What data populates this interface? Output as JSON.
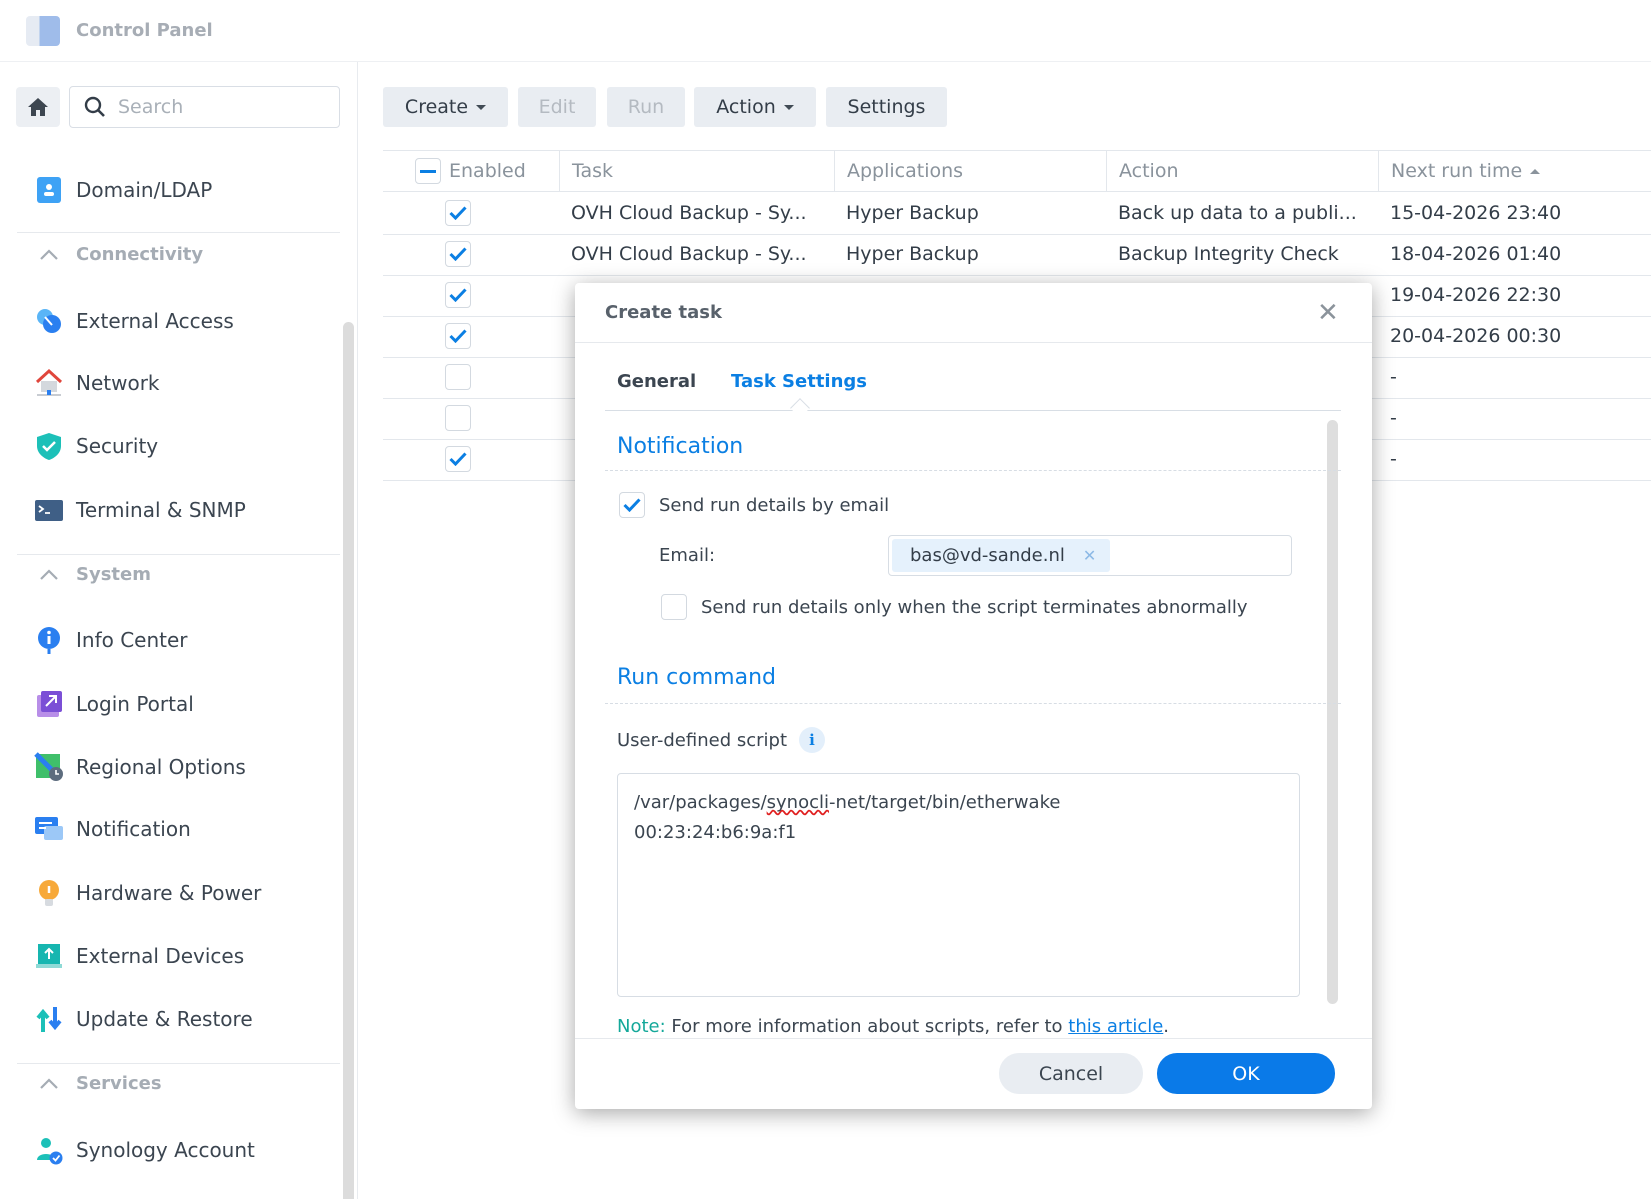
{
  "window": {
    "title": "Control Panel"
  },
  "sidebar": {
    "search_placeholder": "Search",
    "entries": [
      {
        "type": "item",
        "label": "Domain/LDAP",
        "icon": "domain-ldap-icon"
      },
      {
        "type": "sep"
      },
      {
        "type": "section",
        "label": "Connectivity"
      },
      {
        "type": "item",
        "label": "External Access",
        "icon": "external-access-icon"
      },
      {
        "type": "item",
        "label": "Network",
        "icon": "network-icon"
      },
      {
        "type": "item",
        "label": "Security",
        "icon": "security-shield-icon"
      },
      {
        "type": "item",
        "label": "Terminal & SNMP",
        "icon": "terminal-icon"
      },
      {
        "type": "sep"
      },
      {
        "type": "section",
        "label": "System"
      },
      {
        "type": "item",
        "label": "Info Center",
        "icon": "info-center-icon"
      },
      {
        "type": "item",
        "label": "Login Portal",
        "icon": "login-portal-icon"
      },
      {
        "type": "item",
        "label": "Regional Options",
        "icon": "regional-options-icon"
      },
      {
        "type": "item",
        "label": "Notification",
        "icon": "notification-icon"
      },
      {
        "type": "item",
        "label": "Hardware & Power",
        "icon": "hardware-power-icon"
      },
      {
        "type": "item",
        "label": "External Devices",
        "icon": "external-devices-icon"
      },
      {
        "type": "item",
        "label": "Update & Restore",
        "icon": "update-restore-icon"
      },
      {
        "type": "sep"
      },
      {
        "type": "section",
        "label": "Services"
      },
      {
        "type": "item",
        "label": "Synology Account",
        "icon": "synology-account-icon"
      }
    ]
  },
  "toolbar": {
    "create": "Create",
    "edit": "Edit",
    "run": "Run",
    "action": "Action",
    "settings": "Settings"
  },
  "table": {
    "columns": [
      "Enabled",
      "Task",
      "Applications",
      "Action",
      "Next run time"
    ],
    "sort": "Next run time ascending",
    "rows": [
      {
        "enabled": true,
        "task": "OVH Cloud Backup - Sy...",
        "app": "Hyper Backup",
        "action": "Back up data to a publi...",
        "next": "15-04-2026 23:40"
      },
      {
        "enabled": true,
        "task": "OVH Cloud Backup - Sy...",
        "app": "Hyper Backup",
        "action": "Backup Integrity Check",
        "next": "18-04-2026 01:40"
      },
      {
        "enabled": true,
        "task": "",
        "app": "",
        "action": "",
        "next": "19-04-2026 22:30"
      },
      {
        "enabled": true,
        "task": "",
        "app": "",
        "action": "",
        "next": "20-04-2026 00:30"
      },
      {
        "enabled": false,
        "task": "",
        "app": "",
        "action": "",
        "next": "-"
      },
      {
        "enabled": false,
        "task": "",
        "app": "",
        "action": "",
        "next": "-"
      },
      {
        "enabled": true,
        "task": "",
        "app": "",
        "action": "",
        "next": "-"
      }
    ]
  },
  "dialog": {
    "title": "Create task",
    "tabs": [
      {
        "label": "General",
        "active": false
      },
      {
        "label": "Task Settings",
        "active": true
      }
    ],
    "notification_heading": "Notification",
    "send_email_label": "Send run details by email",
    "send_email_checked": true,
    "email_label": "Email:",
    "email_value": "bas@vd-sande.nl",
    "abnormal_label": "Send run details only when the script terminates abnormally",
    "abnormal_checked": false,
    "run_heading": "Run command",
    "script_label": "User-defined script",
    "script_line1_a": "/var/packages/",
    "script_line1_b": "synocli",
    "script_line1_c": "-net/target/bin/etherwake",
    "script_line2": "00:23:24:b6:9a:f1",
    "note_prefix": "Note:",
    "note_text": " For more information about scripts, refer to ",
    "note_link": "this article",
    "note_end": ".",
    "cancel": "Cancel",
    "ok": "OK"
  },
  "colors": {
    "accent": "#0b7fe3",
    "note": "#14a89a",
    "ok_button": "#0a7ae8"
  }
}
